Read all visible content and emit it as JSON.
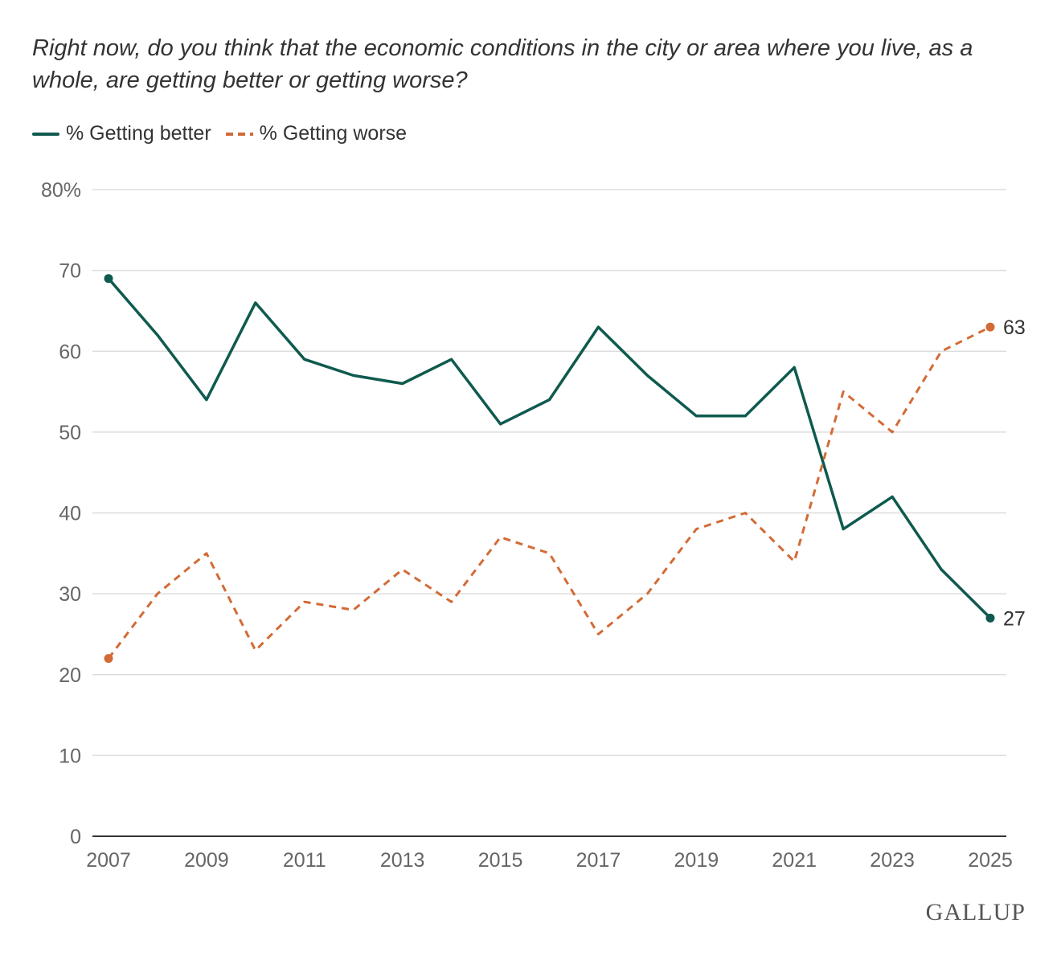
{
  "chart_data": {
    "type": "line",
    "title": "Right now, do you think that the economic conditions in the city or area where you live, as a whole, are getting better or getting worse?",
    "x": [
      2007,
      2008,
      2009,
      2010,
      2011,
      2012,
      2013,
      2014,
      2015,
      2016,
      2017,
      2018,
      2019,
      2020,
      2021,
      2022,
      2023,
      2024,
      2025
    ],
    "x_ticks": [
      "2007",
      "2009",
      "2011",
      "2013",
      "2015",
      "2017",
      "2019",
      "2021",
      "2023",
      "2025"
    ],
    "y_ticks": [
      "0",
      "10",
      "20",
      "30",
      "40",
      "50",
      "60",
      "70",
      "80%"
    ],
    "ylim": [
      0,
      80
    ],
    "grid": true,
    "legend_position": "top-left",
    "series": [
      {
        "name": "% Getting better",
        "color": "#0f5a4f",
        "style": "solid",
        "values": [
          69,
          62,
          54,
          66,
          59,
          57,
          56,
          59,
          51,
          54,
          63,
          57,
          52,
          52,
          58,
          38,
          42,
          33,
          27
        ],
        "end_label": "27"
      },
      {
        "name": "% Getting worse",
        "color": "#d26b36",
        "style": "dashed",
        "values": [
          22,
          30,
          35,
          23,
          29,
          28,
          33,
          29,
          37,
          35,
          25,
          30,
          38,
          40,
          34,
          55,
          50,
          60,
          63
        ],
        "end_label": "63"
      }
    ]
  },
  "brand": "GALLUP"
}
